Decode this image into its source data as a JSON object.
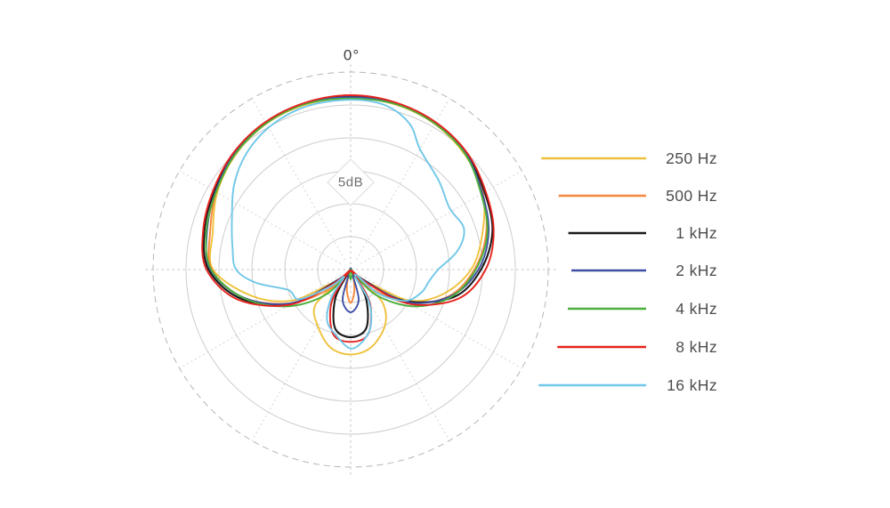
{
  "chart_data": {
    "type": "polar-line",
    "description": "Microphone directional polar pattern across frequencies",
    "angle_label": "0°",
    "radial_label": "5dB",
    "ring_step_db": 5,
    "solid_rings": 5,
    "outer_ring_style": "dashed",
    "angle_grid_step_deg": 30,
    "normalization": "dB relative to on-axis (0°) maximum; points are [angle_deg, dB]",
    "legend_position": "right",
    "series": [
      {
        "name": "250 Hz",
        "color": "#EFC13B",
        "points": [
          [
            0,
            -0.45
          ],
          [
            15,
            -0.5
          ],
          [
            30,
            -0.95
          ],
          [
            45,
            -1.9
          ],
          [
            60,
            -3.3
          ],
          [
            75,
            -5.8
          ],
          [
            90,
            -8.2
          ],
          [
            105,
            -12
          ],
          [
            118,
            -16.5
          ],
          [
            130,
            -23.5
          ],
          [
            136,
            -19.5
          ],
          [
            148,
            -16.6
          ],
          [
            165,
            -14.3
          ],
          [
            180,
            -13.6
          ],
          [
            195,
            -14.3
          ],
          [
            212,
            -16.8
          ],
          [
            225,
            -18.9
          ],
          [
            230,
            -23.5
          ],
          [
            242,
            -16.5
          ],
          [
            255,
            -11
          ],
          [
            270,
            -5.6
          ],
          [
            285,
            -4.8
          ],
          [
            300,
            -3.1
          ],
          [
            315,
            -1.8
          ],
          [
            330,
            -0.9
          ],
          [
            345,
            -0.5
          ]
        ]
      },
      {
        "name": "500 Hz",
        "color": "#F6883D",
        "points": [
          [
            0,
            -0.35
          ],
          [
            15,
            -0.4
          ],
          [
            30,
            -0.8
          ],
          [
            45,
            -1.6
          ],
          [
            60,
            -3.3
          ],
          [
            75,
            -5.2
          ],
          [
            90,
            -7.7
          ],
          [
            105,
            -11
          ],
          [
            120,
            -16.3
          ],
          [
            135,
            -22.8
          ],
          [
            147,
            -40
          ],
          [
            158,
            -25.5
          ],
          [
            170,
            -23.2
          ],
          [
            180,
            -21.4
          ],
          [
            190,
            -23.2
          ],
          [
            202,
            -25.5
          ],
          [
            213,
            -40
          ],
          [
            225,
            -22.8
          ],
          [
            240,
            -16.3
          ],
          [
            255,
            -9.8
          ],
          [
            270,
            -5.4
          ],
          [
            285,
            -4.4
          ],
          [
            300,
            -2.9
          ],
          [
            315,
            -1.5
          ],
          [
            330,
            -0.75
          ],
          [
            345,
            -0.35
          ]
        ]
      },
      {
        "name": "1 kHz",
        "color": "#1A1A1A",
        "points": [
          [
            0,
            -0.15
          ],
          [
            15,
            -0.3
          ],
          [
            30,
            -0.75
          ],
          [
            45,
            -1.6
          ],
          [
            60,
            -3.0
          ],
          [
            75,
            -4.2
          ],
          [
            90,
            -6.7
          ],
          [
            105,
            -10.3
          ],
          [
            120,
            -17
          ],
          [
            129,
            -24
          ],
          [
            137,
            -40
          ],
          [
            146,
            -25.5
          ],
          [
            152,
            -21.5
          ],
          [
            165,
            -17.3
          ],
          [
            180,
            -16.2
          ],
          [
            195,
            -17.3
          ],
          [
            208,
            -21.5
          ],
          [
            214,
            -25.5
          ],
          [
            223,
            -40
          ],
          [
            231,
            -24
          ],
          [
            240,
            -16.2
          ],
          [
            255,
            -9.3
          ],
          [
            270,
            -4.9
          ],
          [
            285,
            -3.5
          ],
          [
            300,
            -2.6
          ],
          [
            315,
            -1.5
          ],
          [
            330,
            -0.7
          ],
          [
            345,
            -0.3
          ]
        ]
      },
      {
        "name": "2 kHz",
        "color": "#3D4EA5",
        "points": [
          [
            0,
            -0.3
          ],
          [
            15,
            -0.35
          ],
          [
            30,
            -0.85
          ],
          [
            45,
            -1.7
          ],
          [
            60,
            -3.4
          ],
          [
            75,
            -4.8
          ],
          [
            90,
            -7.1
          ],
          [
            105,
            -10.8
          ],
          [
            120,
            -16.6
          ],
          [
            133,
            -24.5
          ],
          [
            144,
            -40
          ],
          [
            153,
            -28
          ],
          [
            165,
            -21.8
          ],
          [
            180,
            -20
          ],
          [
            195,
            -21.8
          ],
          [
            207,
            -28
          ],
          [
            216,
            -40
          ],
          [
            227,
            -24.5
          ],
          [
            240,
            -16.4
          ],
          [
            255,
            -9.8
          ],
          [
            270,
            -5.2
          ],
          [
            285,
            -3.9
          ],
          [
            300,
            -2.8
          ],
          [
            315,
            -1.6
          ],
          [
            330,
            -0.8
          ],
          [
            345,
            -0.35
          ]
        ]
      },
      {
        "name": "4 kHz",
        "color": "#4BAE3C",
        "points": [
          [
            0,
            -0.5
          ],
          [
            15,
            -0.45
          ],
          [
            30,
            -0.9
          ],
          [
            45,
            -1.8
          ],
          [
            60,
            -3.6
          ],
          [
            75,
            -5.0
          ],
          [
            90,
            -7.5
          ],
          [
            105,
            -10.6
          ],
          [
            120,
            -15.3
          ],
          [
            135,
            -21
          ],
          [
            153,
            -40
          ],
          [
            166,
            -25.7
          ],
          [
            180,
            -25
          ],
          [
            194,
            -25.7
          ],
          [
            207,
            -40
          ],
          [
            225,
            -21
          ],
          [
            240,
            -15.3
          ],
          [
            255,
            -9.7
          ],
          [
            270,
            -5.3
          ],
          [
            285,
            -3.8
          ],
          [
            300,
            -2.9
          ],
          [
            315,
            -1.7
          ],
          [
            330,
            -0.85
          ],
          [
            345,
            -0.4
          ]
        ]
      },
      {
        "name": "8 kHz",
        "color": "#E6231E",
        "points": [
          [
            0,
            0
          ],
          [
            15,
            -0.2
          ],
          [
            30,
            -0.65
          ],
          [
            45,
            -1.45
          ],
          [
            60,
            -2.8
          ],
          [
            75,
            -4.0
          ],
          [
            90,
            -6.0
          ],
          [
            105,
            -9.5
          ],
          [
            120,
            -16
          ],
          [
            129,
            -23
          ],
          [
            136,
            -40
          ],
          [
            144,
            -24.5
          ],
          [
            151,
            -20.3
          ],
          [
            165,
            -16.3
          ],
          [
            180,
            -15.5
          ],
          [
            195,
            -16.3
          ],
          [
            209,
            -20.3
          ],
          [
            216,
            -24.5
          ],
          [
            224,
            -40
          ],
          [
            231,
            -23
          ],
          [
            240,
            -15.8
          ],
          [
            255,
            -8.8
          ],
          [
            270,
            -4.6
          ],
          [
            285,
            -3.3
          ],
          [
            300,
            -2.4
          ],
          [
            315,
            -1.35
          ],
          [
            330,
            -0.6
          ],
          [
            345,
            -0.2
          ]
        ]
      },
      {
        "name": "16 kHz",
        "color": "#70C7E8",
        "points": [
          [
            0,
            -0.7
          ],
          [
            12,
            -1.0
          ],
          [
            22,
            -2.6
          ],
          [
            30,
            -5.4
          ],
          [
            45,
            -7.5
          ],
          [
            58,
            -8.8
          ],
          [
            70,
            -8.2
          ],
          [
            80,
            -10
          ],
          [
            90,
            -13.2
          ],
          [
            98,
            -14.4
          ],
          [
            108,
            -15.2
          ],
          [
            120,
            -17
          ],
          [
            131,
            -21
          ],
          [
            140,
            -25.5
          ],
          [
            150,
            -21
          ],
          [
            160,
            -17.5
          ],
          [
            170,
            -15.5
          ],
          [
            180,
            -14.5
          ],
          [
            192,
            -16.2
          ],
          [
            205,
            -18
          ],
          [
            215,
            -21.5
          ],
          [
            222,
            -25
          ],
          [
            230,
            -22.5
          ],
          [
            240,
            -17.5
          ],
          [
            252,
            -16.5
          ],
          [
            262,
            -12
          ],
          [
            270,
            -9.1
          ],
          [
            281,
            -8.2
          ],
          [
            293,
            -6.9
          ],
          [
            306,
            -4.6
          ],
          [
            318,
            -2.8
          ],
          [
            331,
            -1.5
          ],
          [
            345,
            -0.8
          ]
        ]
      }
    ]
  }
}
